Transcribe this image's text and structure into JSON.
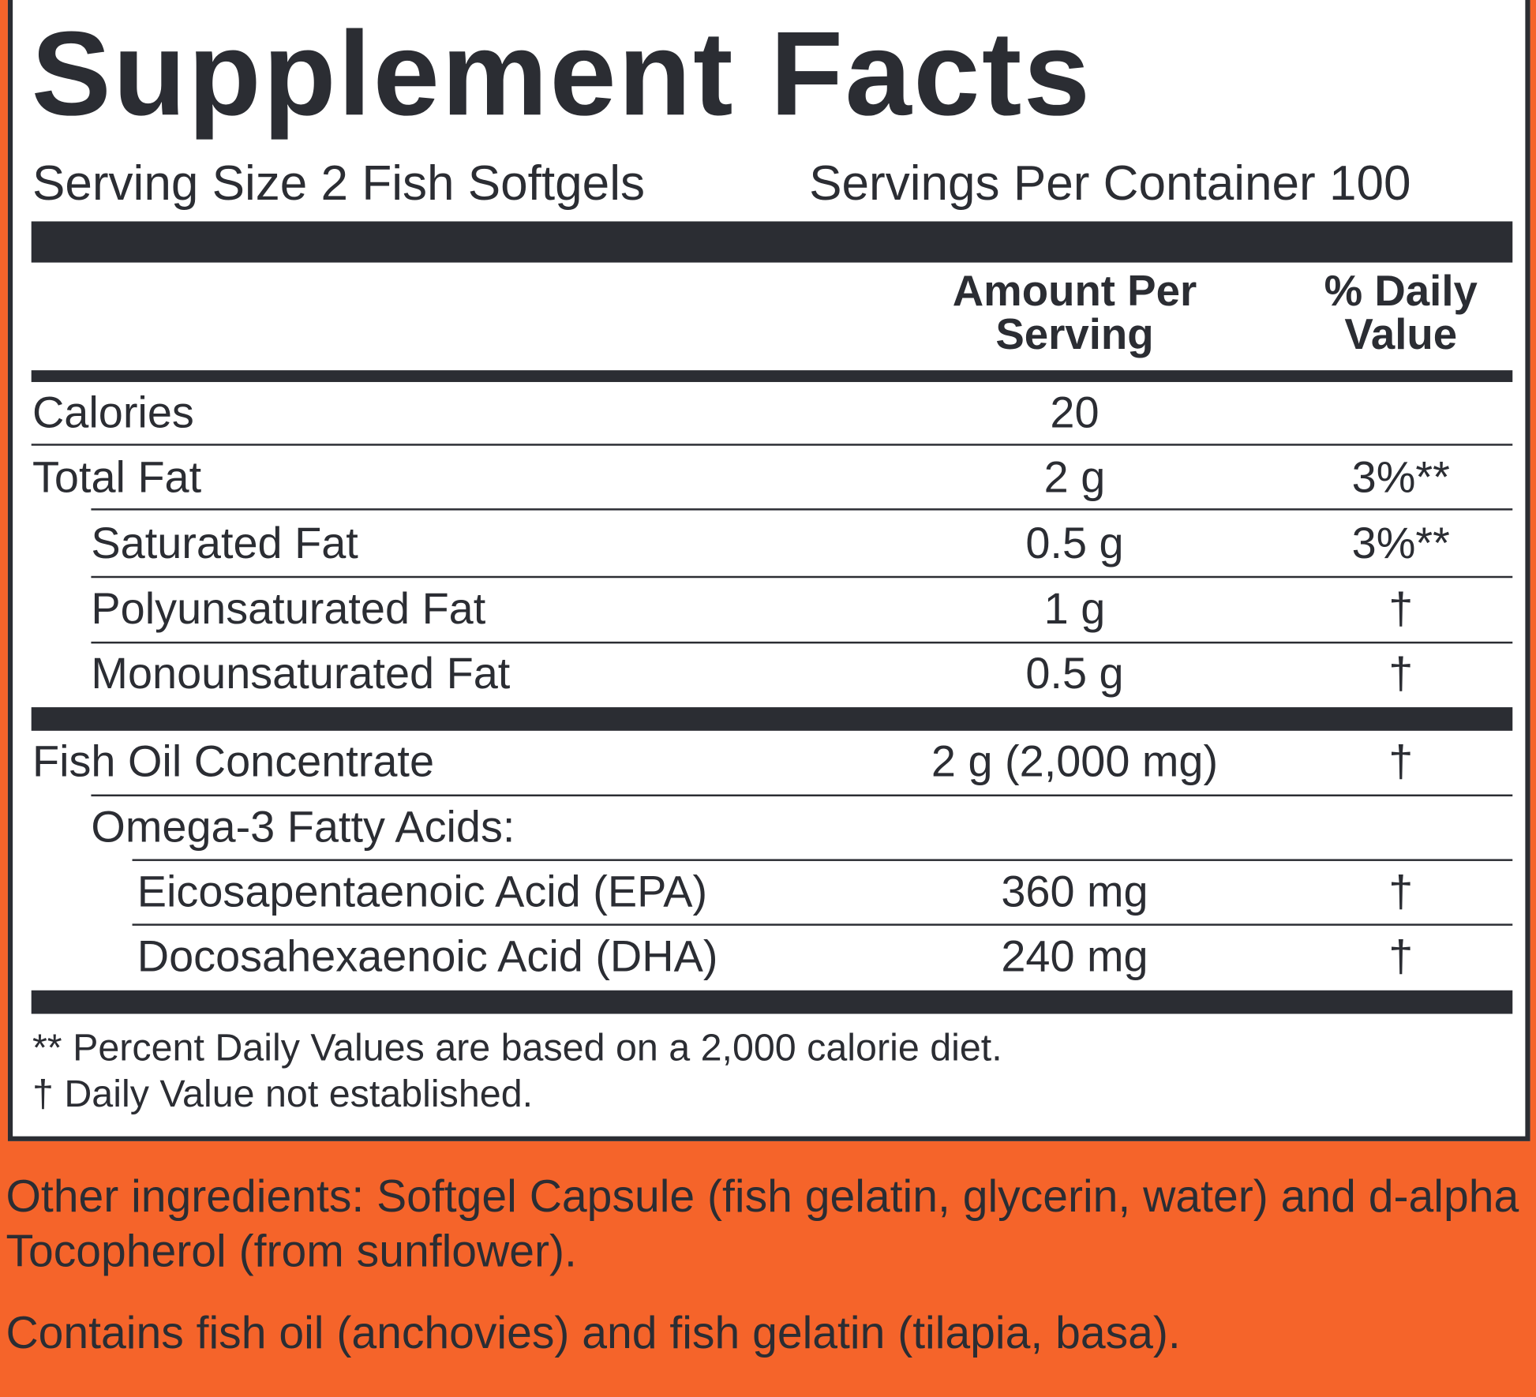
{
  "header": {
    "title": "Supplement Facts",
    "serving_size": "Serving Size 2 Fish Softgels",
    "servings_per_container": "Servings Per Container 100"
  },
  "columns": {
    "amount": "Amount Per Serving",
    "daily_value": "% Daily Value"
  },
  "rows": [
    {
      "name": "Calories",
      "amount": "20"
    },
    {
      "name": "Total Fat",
      "amount": "2 g",
      "daily_value": "3%**"
    },
    {
      "name": "Saturated Fat",
      "amount": "0.5 g",
      "daily_value": "3%**"
    },
    {
      "name": "Polyunsaturated Fat",
      "amount": "1 g",
      "daily_value": "†"
    },
    {
      "name": "Monounsaturated Fat",
      "amount": "0.5 g",
      "daily_value": "†"
    },
    {
      "name": "Fish Oil Concentrate",
      "amount": "2 g (2,000 mg)",
      "daily_value": "†"
    },
    {
      "name": "Omega-3 Fatty Acids:"
    },
    {
      "name": "Eicosapentaenoic Acid (EPA)",
      "amount": "360 mg",
      "daily_value": "†"
    },
    {
      "name": "Docosahexaenoic Acid (DHA)",
      "amount": "240 mg",
      "daily_value": "†"
    }
  ],
  "footnotes": [
    "** Percent Daily Values are based on a 2,000 calorie diet.",
    "† Daily Value not established."
  ],
  "other_ingredients": "Other ingredients: Softgel Capsule (fish gelatin, glycerin, water) and d-alpha Tocopherol (from sunflower).",
  "allergens": "Contains fish oil (anchovies) and fish gelatin (tilapia, basa)."
}
